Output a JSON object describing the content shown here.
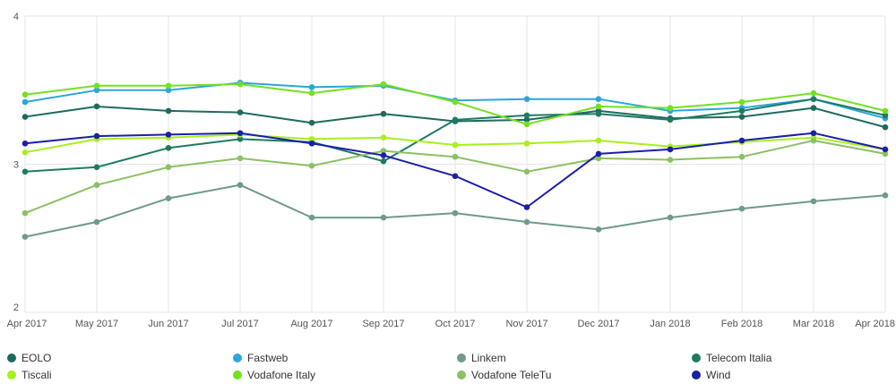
{
  "chart_data": {
    "type": "line",
    "title": "",
    "xlabel": "",
    "ylabel": "",
    "categories": [
      "Apr 2017",
      "May 2017",
      "Jun 2017",
      "Jul 2017",
      "Aug 2017",
      "Sep 2017",
      "Oct 2017",
      "Nov 2017",
      "Dec 2017",
      "Jan 2018",
      "Feb 2018",
      "Mar 2018",
      "Apr 2018"
    ],
    "ylim": [
      2,
      4
    ],
    "yticks": [
      "2",
      "3",
      "4"
    ],
    "grid": true,
    "legend_position": "bottom",
    "series": [
      {
        "name": "EOLO",
        "color": "#1e6b5e",
        "values": [
          3.32,
          3.39,
          3.36,
          3.35,
          3.28,
          3.34,
          3.29,
          3.3,
          3.36,
          3.31,
          3.32,
          3.38,
          3.25
        ]
      },
      {
        "name": "Fastweb",
        "color": "#2aa6dc",
        "values": [
          3.42,
          3.5,
          3.5,
          3.55,
          3.52,
          3.53,
          3.43,
          3.44,
          3.44,
          3.36,
          3.38,
          3.44,
          3.31
        ]
      },
      {
        "name": "Linkem",
        "color": "#6e9a88",
        "values": [
          2.51,
          2.61,
          2.77,
          2.86,
          2.64,
          2.64,
          2.67,
          2.61,
          2.56,
          2.64,
          2.7,
          2.75,
          2.79
        ]
      },
      {
        "name": "Telecom Italia",
        "color": "#1f7a63",
        "values": [
          2.95,
          2.98,
          3.11,
          3.17,
          3.15,
          3.02,
          3.3,
          3.33,
          3.34,
          3.3,
          3.36,
          3.44,
          3.33
        ]
      },
      {
        "name": "Tiscali",
        "color": "#a6f01e",
        "values": [
          3.08,
          3.17,
          3.18,
          3.2,
          3.17,
          3.18,
          3.13,
          3.14,
          3.16,
          3.12,
          3.15,
          3.18,
          3.1
        ]
      },
      {
        "name": "Vodafone Italy",
        "color": "#74e022",
        "values": [
          3.47,
          3.53,
          3.53,
          3.54,
          3.48,
          3.54,
          3.42,
          3.27,
          3.39,
          3.38,
          3.42,
          3.48,
          3.36
        ]
      },
      {
        "name": "Vodafone TeleTu",
        "color": "#8cc063",
        "values": [
          2.67,
          2.86,
          2.98,
          3.04,
          2.99,
          3.09,
          3.05,
          2.95,
          3.04,
          3.03,
          3.05,
          3.16,
          3.07
        ]
      },
      {
        "name": "Wind",
        "color": "#1a1fa8",
        "values": [
          3.14,
          3.19,
          3.2,
          3.21,
          3.14,
          3.06,
          2.92,
          2.71,
          3.07,
          3.1,
          3.16,
          3.21,
          3.1
        ]
      }
    ]
  }
}
